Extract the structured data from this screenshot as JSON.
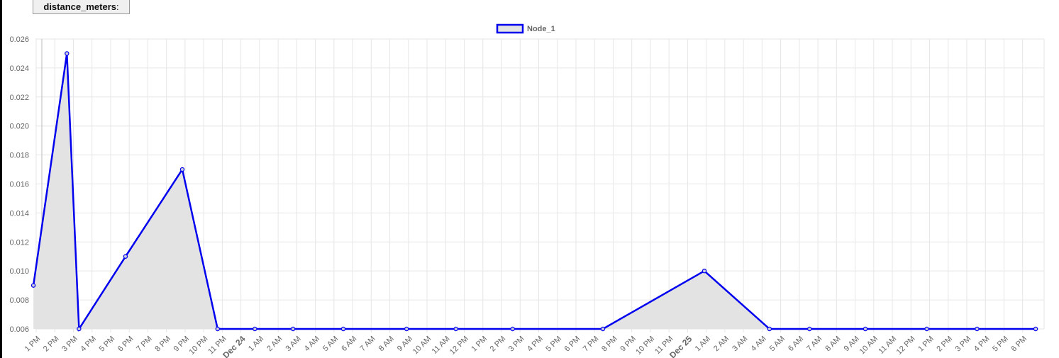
{
  "metric_button": {
    "label": "distance_meters",
    "suffix": ":"
  },
  "colors": {
    "series": "#0000ee",
    "fill": "#e3e3e3",
    "grid": "#e6e6e6",
    "axis_text": "#666666"
  },
  "chart_data": {
    "type": "line",
    "title": "",
    "xlabel": "",
    "ylabel": "",
    "legend": {
      "position": "top-center",
      "entries": [
        "Node_1"
      ]
    },
    "grid": true,
    "ylim": [
      0.006,
      0.026
    ],
    "y_ticks": [
      "0.006",
      "0.008",
      "0.010",
      "0.012",
      "0.014",
      "0.016",
      "0.018",
      "0.020",
      "0.022",
      "0.024",
      "0.026"
    ],
    "x_ticks": [
      "1 PM",
      "2 PM",
      "3 PM",
      "4 PM",
      "5 PM",
      "6 PM",
      "7 PM",
      "8 PM",
      "9 PM",
      "10 PM",
      "11 PM",
      "Dec 24",
      "1 AM",
      "2 AM",
      "3 AM",
      "4 AM",
      "5 AM",
      "6 AM",
      "7 AM",
      "8 AM",
      "9 AM",
      "10 AM",
      "11 AM",
      "12 PM",
      "1 PM",
      "2 PM",
      "3 PM",
      "4 PM",
      "5 PM",
      "6 PM",
      "7 PM",
      "8 PM",
      "9 PM",
      "10 PM",
      "11 PM",
      "Dec 25",
      "1 AM",
      "2 AM",
      "3 AM",
      "4 AM",
      "5 AM",
      "6 AM",
      "7 AM",
      "8 AM",
      "9 AM",
      "10 AM",
      "11 AM",
      "12 PM",
      "1 PM",
      "2 PM",
      "3 PM",
      "4 PM",
      "5 PM",
      "6 PM"
    ],
    "x_ticks_bold": [
      "Dec 24",
      "Dec 25"
    ],
    "series": [
      {
        "name": "Node_1",
        "x_hours": [
          12.85,
          14.65,
          15.3,
          17.8,
          20.85,
          22.75,
          24.75,
          26.8,
          29.5,
          32.9,
          35.55,
          38.6,
          43.45,
          48.9,
          52.4,
          54.55,
          57.55,
          60.85,
          63.55,
          66.7
        ],
        "values": [
          0.009,
          0.025,
          0.006,
          0.011,
          0.017,
          0.006,
          0.006,
          0.006,
          0.006,
          0.006,
          0.006,
          0.006,
          0.006,
          0.01,
          0.006,
          0.006,
          0.006,
          0.006,
          0.006,
          0.006
        ]
      }
    ]
  }
}
